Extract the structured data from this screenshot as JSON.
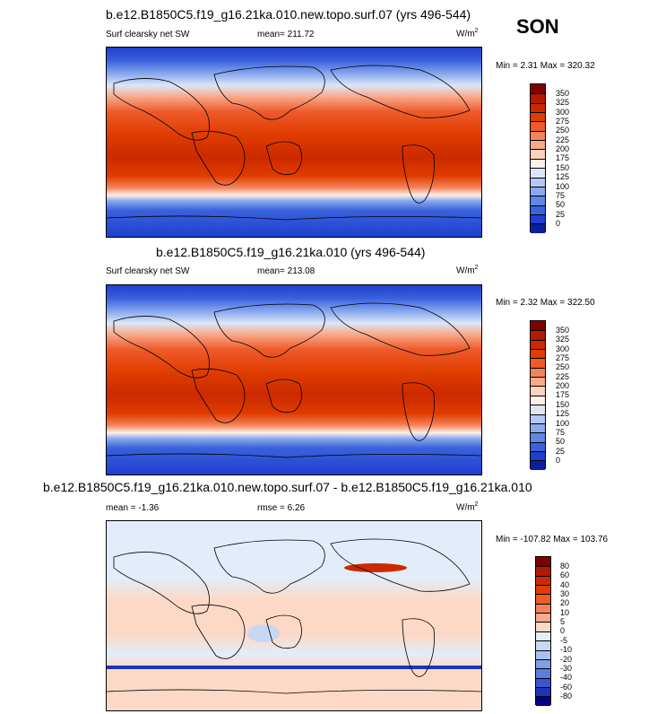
{
  "season": "SON",
  "units_label": "W/m",
  "units_sup": "2",
  "panels": [
    {
      "title": "b.e12.B1850C5.f19_g16.21ka.010.new.topo.surf.07 (yrs 496-544)",
      "variable": "Surf clearsky net SW",
      "mean": "mean= 211.72",
      "minmax": "Min =   2.31 Max = 320.32"
    },
    {
      "title": "b.e12.B1850C5.f19_g16.21ka.010 (yrs 496-544)",
      "variable": "Surf clearsky net SW",
      "mean": "mean= 213.08",
      "minmax": "Min =   2.32 Max = 322.50"
    },
    {
      "title": "b.e12.B1850C5.f19_g16.21ka.010.new.topo.surf.07 - b.e12.B1850C5.f19_g16.21ka.010",
      "mean": "mean =   -1.36",
      "rmse": "rmse =    6.26",
      "minmax": "Min = -107.82 Max = 103.76"
    }
  ],
  "colorbar_abs": {
    "labels": [
      "350",
      "325",
      "300",
      "275",
      "250",
      "225",
      "200",
      "175",
      "150",
      "125",
      "100",
      "75",
      "50",
      "25",
      "0"
    ],
    "colors": [
      "#800000",
      "#b31a00",
      "#cc2900",
      "#e03d00",
      "#ee5a2a",
      "#f5845c",
      "#f9a98a",
      "#fcd2be",
      "#fdf0e8",
      "#dce6f8",
      "#b4c8f2",
      "#8aaaee",
      "#5f87e6",
      "#3a62dc",
      "#1f3fcf",
      "#0a1f9e"
    ]
  },
  "colorbar_diff": {
    "labels": [
      "80",
      "60",
      "40",
      "30",
      "20",
      "10",
      "5",
      "0",
      "-5",
      "-10",
      "-20",
      "-30",
      "-40",
      "-60",
      "-80"
    ],
    "colors": [
      "#800000",
      "#b31a00",
      "#cc2900",
      "#e03d00",
      "#ee5a2a",
      "#f5845c",
      "#f9a98a",
      "#fcd9c6",
      "#e3ecfa",
      "#c8d8f4",
      "#a9c0ef",
      "#7f9fe8",
      "#5a7fe0",
      "#3758d3",
      "#1b35b8",
      "#00008b"
    ]
  },
  "chart_data": [
    {
      "type": "heatmap",
      "title": "b.e12.B1850C5.f19_g16.21ka.010.new.topo.surf.07 (yrs 496-544)",
      "variable": "Surf clearsky net SW",
      "units": "W/m2",
      "mean": 211.72,
      "min": 2.31,
      "max": 320.32,
      "levels": [
        0,
        25,
        50,
        75,
        100,
        125,
        150,
        175,
        200,
        225,
        250,
        275,
        300,
        325,
        350
      ]
    },
    {
      "type": "heatmap",
      "title": "b.e12.B1850C5.f19_g16.21ka.010 (yrs 496-544)",
      "variable": "Surf clearsky net SW",
      "units": "W/m2",
      "mean": 213.08,
      "min": 2.32,
      "max": 322.5,
      "levels": [
        0,
        25,
        50,
        75,
        100,
        125,
        150,
        175,
        200,
        225,
        250,
        275,
        300,
        325,
        350
      ]
    },
    {
      "type": "heatmap",
      "title": "b.e12.B1850C5.f19_g16.21ka.010.new.topo.surf.07 - b.e12.B1850C5.f19_g16.21ka.010",
      "units": "W/m2",
      "mean": -1.36,
      "rmse": 6.26,
      "min": -107.82,
      "max": 103.76,
      "levels": [
        -80,
        -60,
        -40,
        -30,
        -20,
        -10,
        -5,
        0,
        5,
        10,
        20,
        30,
        40,
        60,
        80
      ]
    }
  ]
}
